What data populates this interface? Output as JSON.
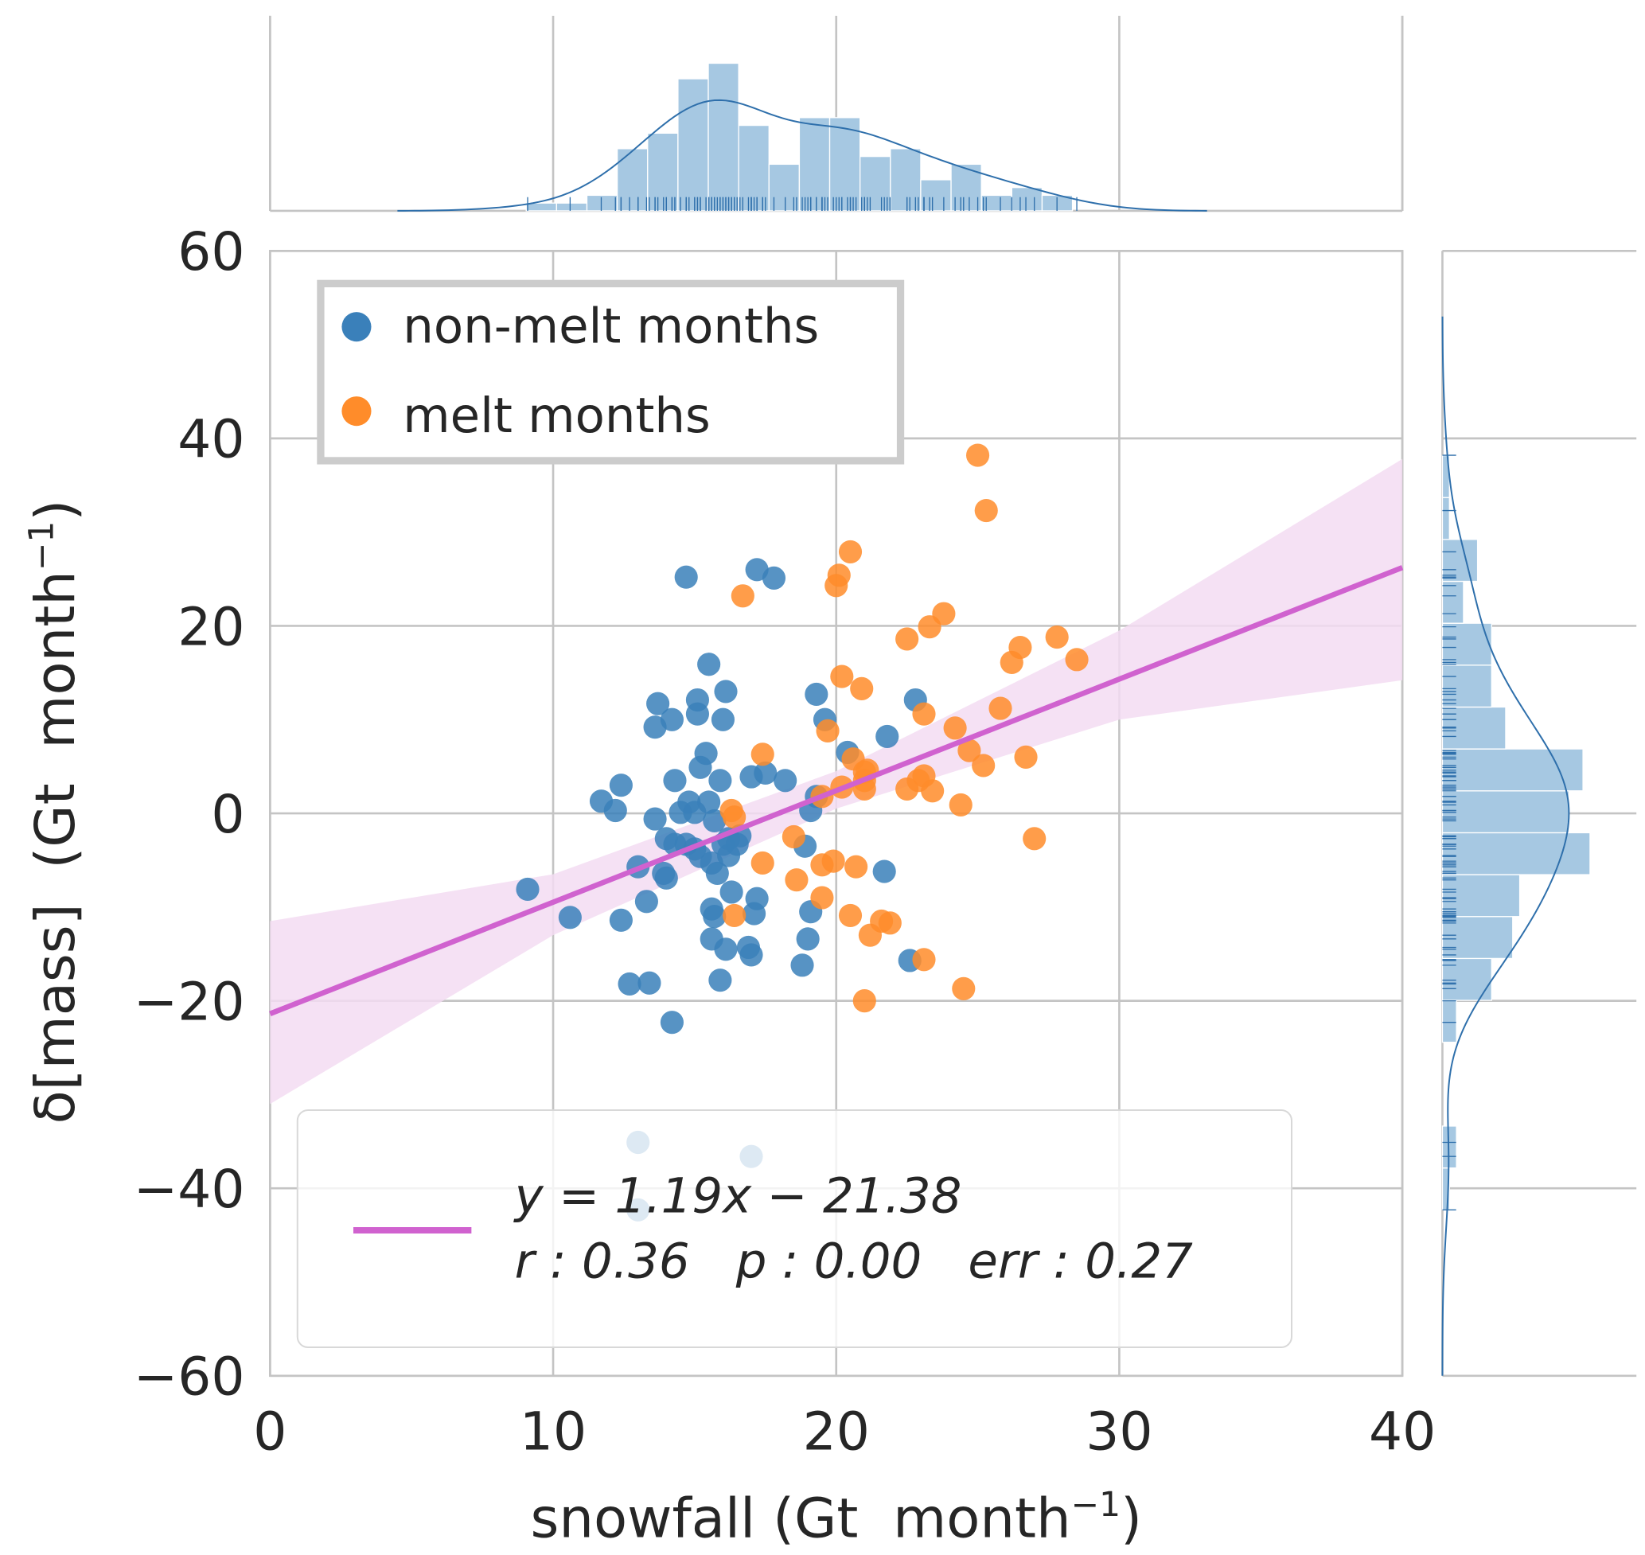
{
  "chart_data": {
    "type": "scatter",
    "xlabel": "snowfall (Gt  month",
    "xlabel_sup": "−1",
    "xlabel_end": ")",
    "ylabel": "δ[mass]  (Gt  month",
    "ylabel_sup": "−1",
    "ylabel_end": ")",
    "xlim": [
      0,
      40
    ],
    "ylim": [
      -60,
      60
    ],
    "xticks": [
      "0",
      "10",
      "20",
      "30",
      "40"
    ],
    "yticks": [
      "−60",
      "−40",
      "−20",
      "0",
      "20",
      "40",
      "60"
    ],
    "xtick_values": [
      0,
      10,
      20,
      30,
      40
    ],
    "ytick_values": [
      -60,
      -40,
      -20,
      0,
      20,
      40,
      60
    ],
    "grid": true,
    "legend": {
      "placement": "top-left",
      "entries": [
        "non-melt months",
        "melt months"
      ]
    },
    "colors": {
      "non_melt": "#3a80ba",
      "melt": "#ff8c2a",
      "fit": "#d062cf",
      "band": "#f3dcf2",
      "hist": "#a6c8e2",
      "kde": "#2e6fab"
    },
    "series": [
      {
        "name": "non-melt months",
        "points": [
          [
            14.7,
            25.2
          ],
          [
            17.2,
            26
          ],
          [
            17.8,
            25.1
          ],
          [
            15.5,
            15.9
          ],
          [
            13.7,
            11.7
          ],
          [
            13.6,
            9.2
          ],
          [
            14.2,
            10
          ],
          [
            15.1,
            12.1
          ],
          [
            16.1,
            13
          ],
          [
            15.1,
            10.6
          ],
          [
            16.0,
            10
          ],
          [
            19.3,
            12.7
          ],
          [
            19.6,
            10
          ],
          [
            22.8,
            12.1
          ],
          [
            21.8,
            8.2
          ],
          [
            20.4,
            6.5
          ],
          [
            15.4,
            6.4
          ],
          [
            15.2,
            4.9
          ],
          [
            14.3,
            3.5
          ],
          [
            15.9,
            3.5
          ],
          [
            12.4,
            3.0
          ],
          [
            11.7,
            1.3
          ],
          [
            12.2,
            0.3
          ],
          [
            17.0,
            3.9
          ],
          [
            17.5,
            4.3
          ],
          [
            18.2,
            3.5
          ],
          [
            19.3,
            1.8
          ],
          [
            19.1,
            0.3
          ],
          [
            14.8,
            1.2
          ],
          [
            15.5,
            1.2
          ],
          [
            14.5,
            0.1
          ],
          [
            13.6,
            -0.6
          ],
          [
            15.0,
            0.1
          ],
          [
            15.7,
            -0.8
          ],
          [
            14.0,
            -2.7
          ],
          [
            14.3,
            -3.3
          ],
          [
            14.7,
            -3.3
          ],
          [
            15.0,
            -3.8
          ],
          [
            15.2,
            -4.6
          ],
          [
            15.6,
            -5.3
          ],
          [
            15.8,
            -6.4
          ],
          [
            16.2,
            -2.7
          ],
          [
            16.5,
            -3.3
          ],
          [
            16.6,
            -2.4
          ],
          [
            16.2,
            -4.5
          ],
          [
            16.0,
            -3.3
          ],
          [
            13.0,
            -5.7
          ],
          [
            14.0,
            -6.9
          ],
          [
            13.9,
            -6.4
          ],
          [
            18.9,
            -3.5
          ],
          [
            21.7,
            -6.2
          ],
          [
            9.1,
            -8.1
          ],
          [
            10.6,
            -11.1
          ],
          [
            12.4,
            -11.4
          ],
          [
            13.3,
            -9.4
          ],
          [
            16.3,
            -8.4
          ],
          [
            15.6,
            -10.2
          ],
          [
            17.1,
            -10.7
          ],
          [
            15.7,
            -11
          ],
          [
            17.2,
            -9.1
          ],
          [
            19.1,
            -10.5
          ],
          [
            15.6,
            -13.4
          ],
          [
            16.1,
            -14.5
          ],
          [
            16.9,
            -14.3
          ],
          [
            17.0,
            -15.1
          ],
          [
            19.0,
            -13.4
          ],
          [
            18.8,
            -16.2
          ],
          [
            22.6,
            -15.7
          ],
          [
            12.7,
            -18.2
          ],
          [
            13.4,
            -18.1
          ],
          [
            15.9,
            -17.8
          ],
          [
            14.2,
            -22.3
          ],
          [
            13.0,
            -35.1
          ],
          [
            17.0,
            -36.6
          ],
          [
            13.0,
            -42.3
          ]
        ]
      },
      {
        "name": "melt months",
        "points": [
          [
            25.0,
            38.2
          ],
          [
            25.3,
            32.3
          ],
          [
            20.5,
            27.9
          ],
          [
            20.1,
            25.4
          ],
          [
            20.0,
            24.3
          ],
          [
            16.7,
            23.2
          ],
          [
            23.8,
            21.3
          ],
          [
            23.3,
            19.9
          ],
          [
            22.5,
            18.6
          ],
          [
            27.8,
            18.8
          ],
          [
            28.5,
            16.4
          ],
          [
            26.5,
            17.7
          ],
          [
            26.2,
            16.1
          ],
          [
            20.2,
            14.6
          ],
          [
            20.9,
            13.3
          ],
          [
            23.1,
            10.6
          ],
          [
            25.8,
            11.2
          ],
          [
            24.2,
            9.1
          ],
          [
            19.7,
            8.8
          ],
          [
            17.4,
            6.3
          ],
          [
            20.6,
            5.8
          ],
          [
            24.7,
            6.7
          ],
          [
            25.2,
            5.1
          ],
          [
            26.7,
            6.0
          ],
          [
            21.0,
            4.4
          ],
          [
            21.1,
            4.6
          ],
          [
            21.0,
            3.5
          ],
          [
            23.1,
            4.0
          ],
          [
            22.9,
            3.5
          ],
          [
            22.5,
            2.6
          ],
          [
            23.4,
            2.4
          ],
          [
            20.2,
            2.8
          ],
          [
            19.5,
            1.8
          ],
          [
            21.0,
            2.6
          ],
          [
            24.4,
            0.9
          ],
          [
            16.3,
            0.3
          ],
          [
            16.4,
            -0.4
          ],
          [
            27.0,
            -2.7
          ],
          [
            18.5,
            -2.5
          ],
          [
            17.4,
            -5.3
          ],
          [
            19.5,
            -5.5
          ],
          [
            19.9,
            -5.1
          ],
          [
            20.7,
            -5.7
          ],
          [
            18.6,
            -7.1
          ],
          [
            19.5,
            -9
          ],
          [
            16.4,
            -10.9
          ],
          [
            20.5,
            -10.9
          ],
          [
            21.6,
            -11.5
          ],
          [
            21.9,
            -11.7
          ],
          [
            21.2,
            -13
          ],
          [
            23.1,
            -15.6
          ],
          [
            24.5,
            -18.7
          ],
          [
            21.0,
            -20.0
          ]
        ]
      }
    ],
    "fit": {
      "slope": 1.19,
      "intercept": -21.38,
      "equation": "y = 1.19x − 21.38",
      "stats": "r : 0.36   p : 0.00   err : 0.27",
      "ci_x": [
        0,
        10,
        20,
        30,
        40
      ],
      "ci_lower": [
        -31,
        -13,
        0.5,
        10,
        14.2
      ],
      "ci_upper": [
        -11.5,
        -6.5,
        4.5,
        19.5,
        37.8
      ]
    },
    "x_hist": {
      "start": 9.05,
      "bin_width": 1.072,
      "counts": [
        1,
        1,
        2,
        8,
        10,
        17,
        19,
        11,
        6,
        12,
        12,
        7,
        8,
        4,
        6,
        2,
        3,
        2
      ]
    },
    "y_hist": {
      "start": -42.3,
      "bin_width": 4.47,
      "counts": [
        1,
        2,
        0,
        0,
        2,
        7,
        10,
        11,
        21,
        18,
        20,
        9,
        7,
        7,
        3,
        5,
        1,
        1
      ]
    }
  }
}
